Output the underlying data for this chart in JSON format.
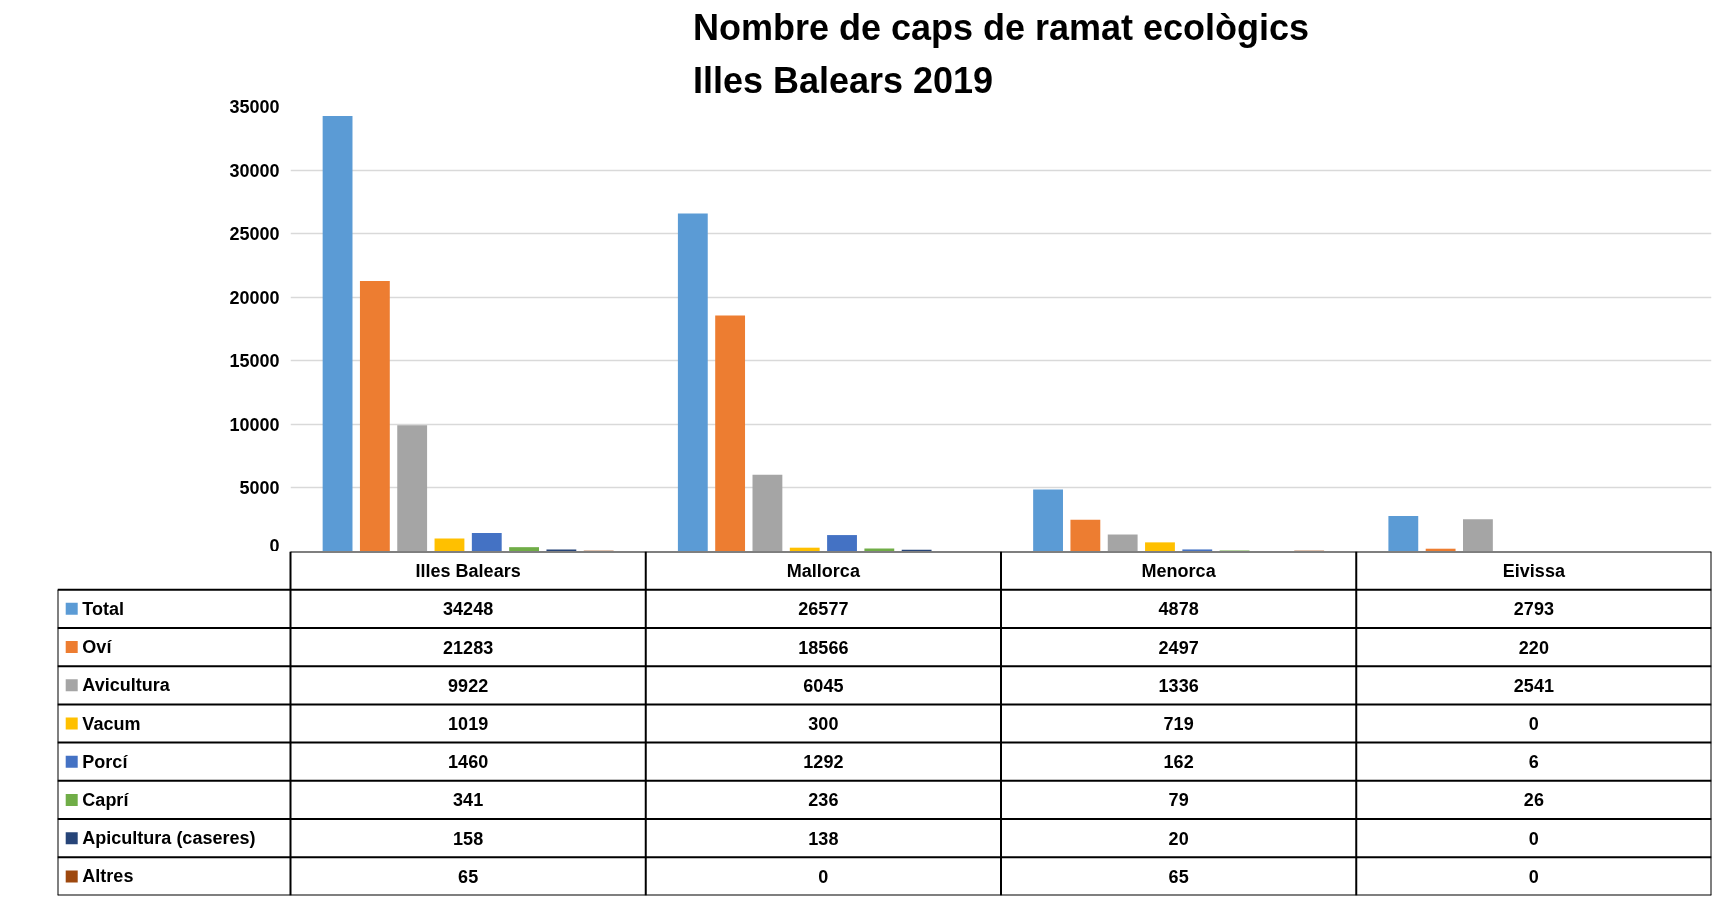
{
  "chart_data": {
    "type": "bar",
    "title": "Nombre de caps de ramat ecològics\nIlles Balears 2019",
    "categories": [
      "Illes Balears",
      "Mallorca",
      "Menorca",
      "Eivissa"
    ],
    "series": [
      {
        "name": "Total",
        "color": "#5b9bd5",
        "values": [
          34248,
          26577,
          4878,
          2793
        ],
        "value_labels": [
          "34248",
          "26577",
          "4878",
          "2793"
        ]
      },
      {
        "name": "Oví",
        "color": "#ed7d31",
        "values": [
          21283,
          18566,
          2497,
          220
        ],
        "value_labels": [
          "21283",
          "18566",
          "2497",
          "220"
        ]
      },
      {
        "name": "Avicultura",
        "color": "#a5a5a5",
        "values": [
          9922,
          6045,
          1336,
          2541
        ],
        "value_labels": [
          "9922",
          "6045",
          "1336",
          "2541"
        ]
      },
      {
        "name": "Vacum",
        "color": "#ffc000",
        "values": [
          1019,
          300,
          719,
          0
        ],
        "value_labels": [
          "1019",
          "300",
          "719",
          "0"
        ]
      },
      {
        "name": "Porcí",
        "color": "#4472c4",
        "values": [
          1460,
          1292,
          162,
          6
        ],
        "value_labels": [
          "1460",
          "1292",
          "162",
          "6"
        ]
      },
      {
        "name": "Caprí",
        "color": "#70ad47",
        "values": [
          341,
          236,
          79,
          26
        ],
        "value_labels": [
          "341",
          "236",
          "79",
          "26"
        ]
      },
      {
        "name": "Apicultura (caseres)",
        "color": "#264478",
        "values": [
          158,
          138,
          20,
          0
        ],
        "value_labels": [
          "158",
          "138",
          "20",
          "0"
        ]
      },
      {
        "name": "Altres",
        "color": "#9e480e",
        "values": [
          65,
          0,
          65,
          0
        ],
        "value_labels": [
          "65",
          "0",
          "65",
          "0"
        ]
      }
    ],
    "ylim": [
      0,
      35000
    ],
    "yticks": [
      0,
      5000,
      10000,
      15000,
      20000,
      25000,
      30000,
      35000
    ],
    "grid": "y",
    "data_labels": true,
    "legend": "bottom"
  }
}
